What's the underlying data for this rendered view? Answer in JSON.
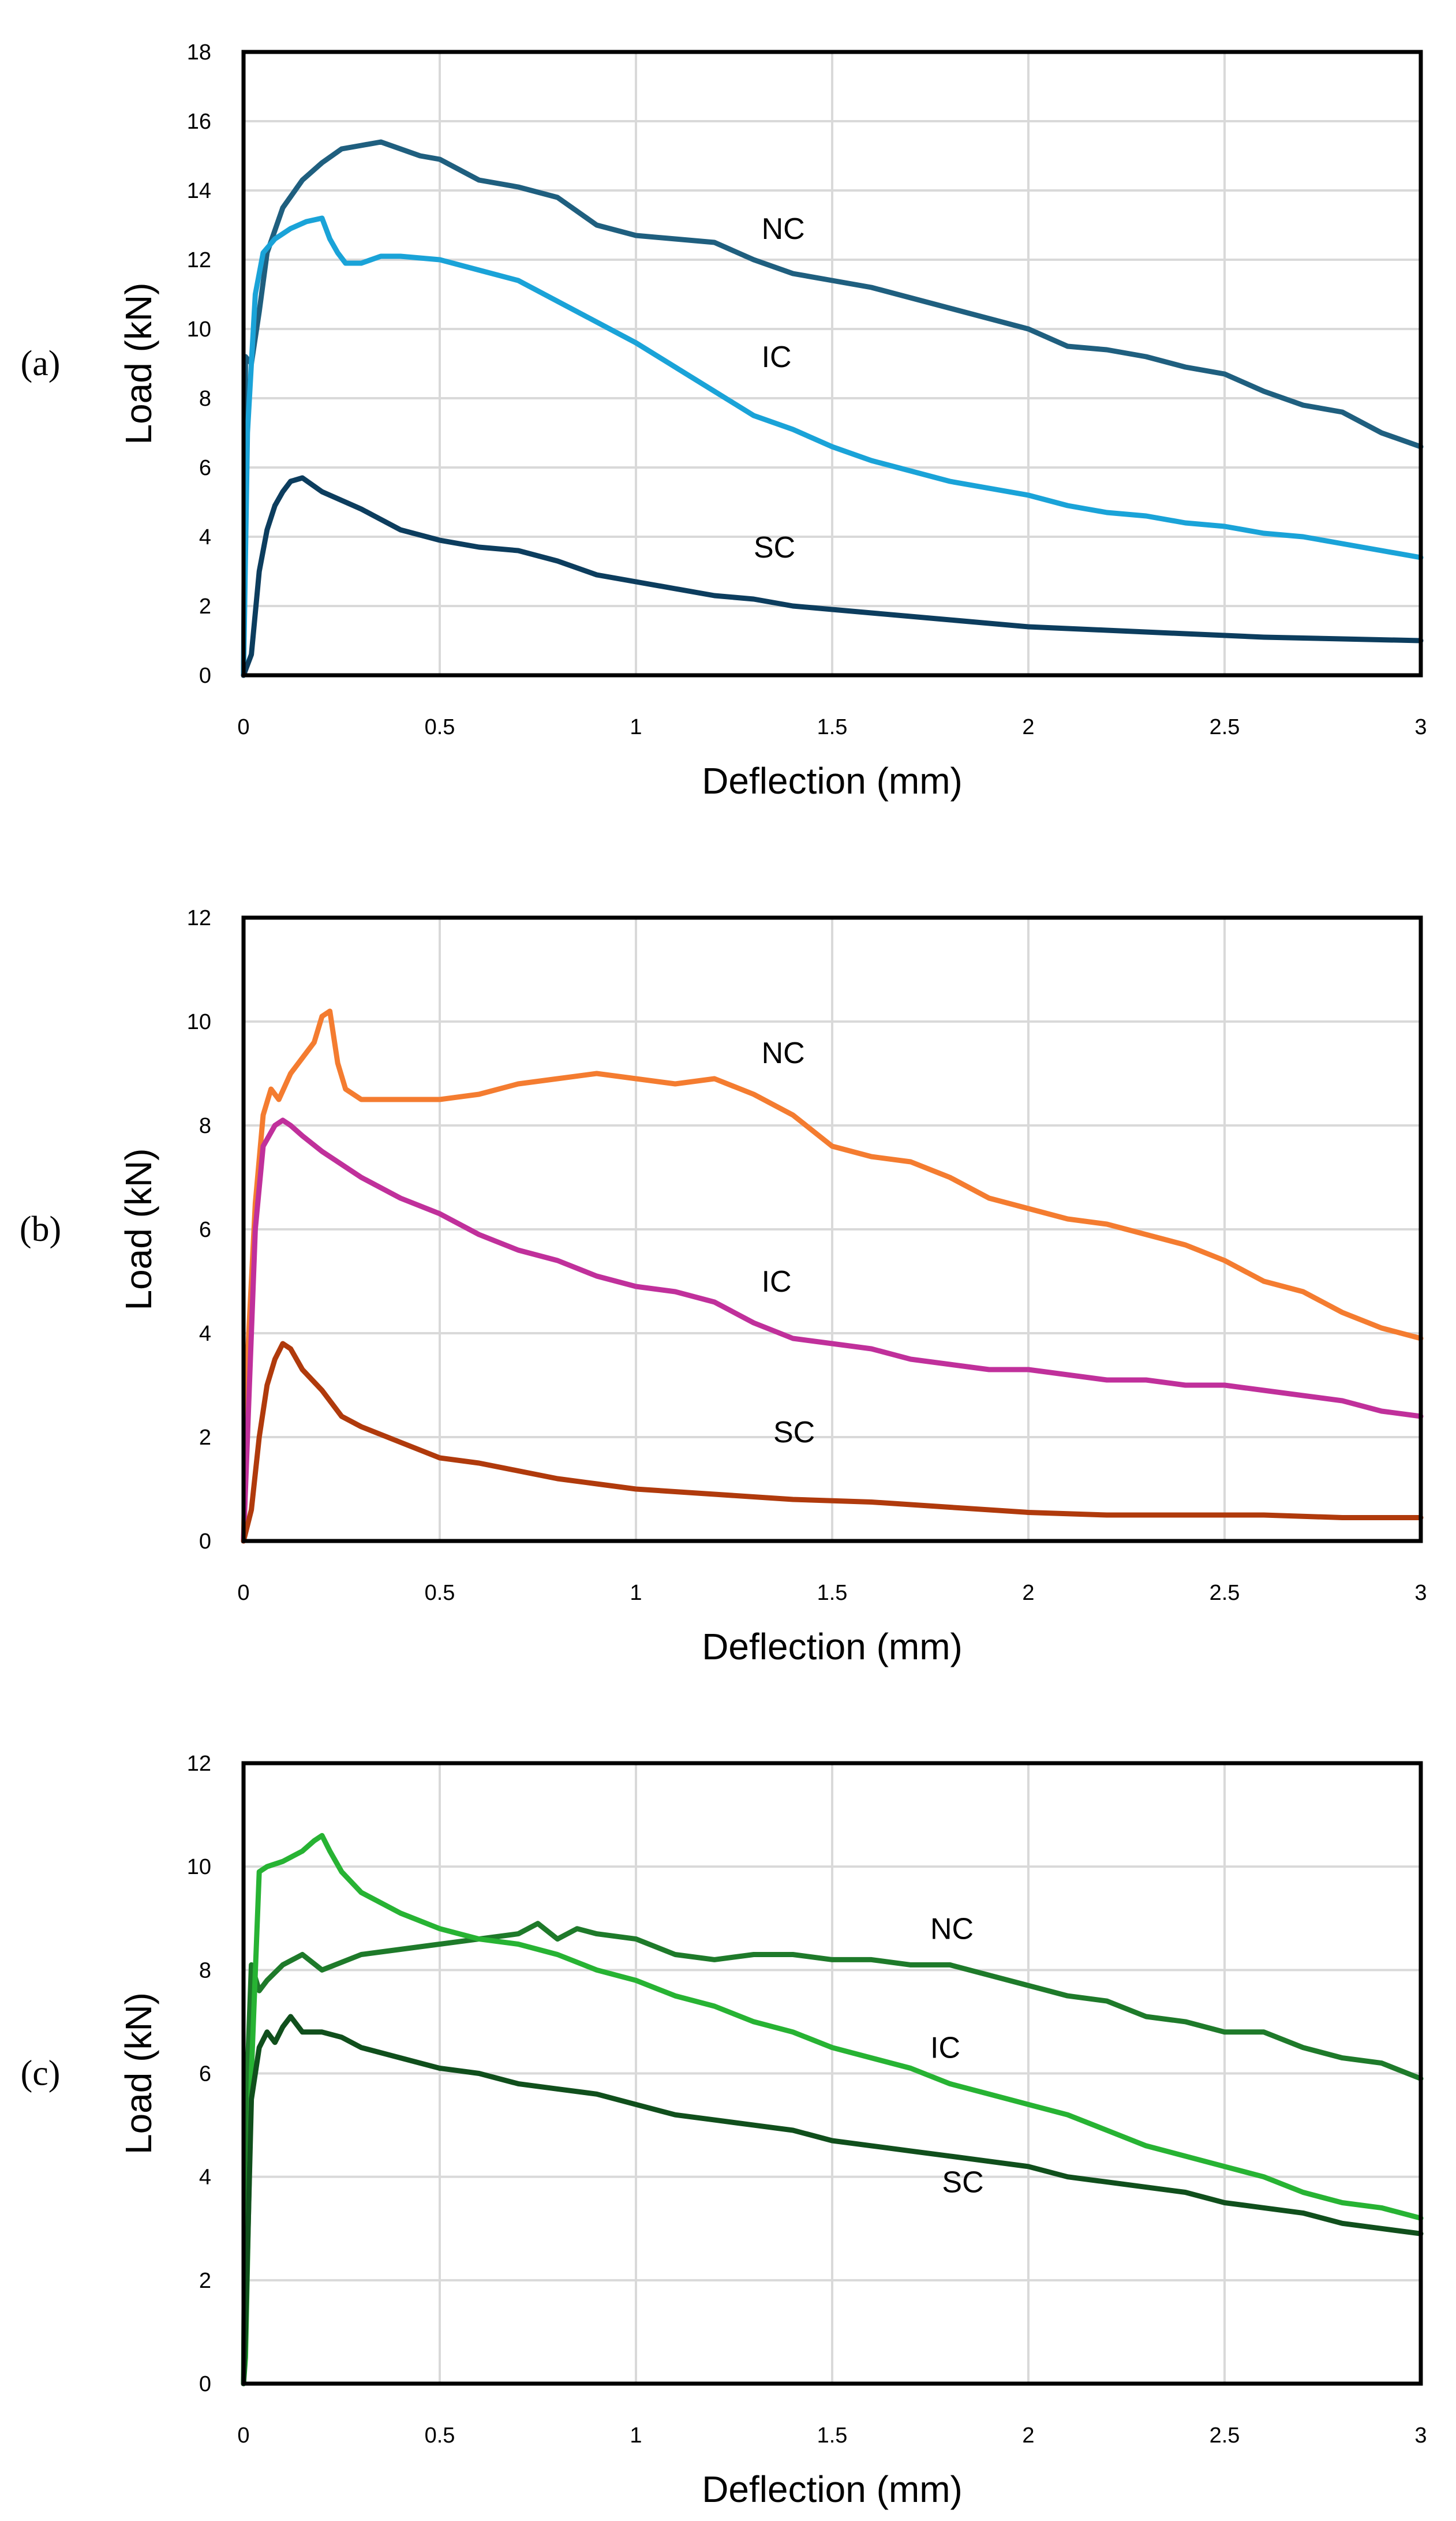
{
  "chart_data": [
    {
      "type": "line",
      "panel_label": "(a)",
      "xlabel": "Deflection (mm)",
      "ylabel": "Load (kN)",
      "xlim": [
        0,
        3
      ],
      "ylim": [
        0,
        18
      ],
      "xticks": [
        "0",
        "0.5",
        "1",
        "1.5",
        "2",
        "2.5",
        "3"
      ],
      "yticks": [
        "0",
        "2",
        "4",
        "6",
        "8",
        "10",
        "12",
        "14",
        "16",
        "18"
      ],
      "grid": true,
      "legend": "none",
      "series": [
        {
          "name": "NC",
          "color": "#1f5f7f",
          "label_at": [
            1.32,
            12.6
          ],
          "x": [
            0,
            0.005,
            0.02,
            0.04,
            0.06,
            0.1,
            0.15,
            0.2,
            0.25,
            0.3,
            0.35,
            0.4,
            0.45,
            0.5,
            0.6,
            0.7,
            0.8,
            0.9,
            1.0,
            1.1,
            1.2,
            1.3,
            1.4,
            1.5,
            1.6,
            1.7,
            1.8,
            1.9,
            2.0,
            2.1,
            2.2,
            2.3,
            2.4,
            2.5,
            2.6,
            2.7,
            2.8,
            2.9,
            3.0
          ],
          "y": [
            0,
            9.2,
            9.0,
            10.5,
            12.2,
            13.5,
            14.3,
            14.8,
            15.2,
            15.3,
            15.4,
            15.2,
            15.0,
            14.9,
            14.3,
            14.1,
            13.8,
            13.0,
            12.7,
            12.6,
            12.5,
            12.0,
            11.6,
            11.4,
            11.2,
            10.9,
            10.6,
            10.3,
            10.0,
            9.5,
            9.4,
            9.2,
            8.9,
            8.7,
            8.2,
            7.8,
            7.6,
            7.0,
            6.6
          ]
        },
        {
          "name": "IC",
          "color": "#1aa3d8",
          "label_at": [
            1.32,
            8.9
          ],
          "x": [
            0,
            0.01,
            0.03,
            0.05,
            0.08,
            0.12,
            0.16,
            0.2,
            0.22,
            0.24,
            0.26,
            0.3,
            0.35,
            0.4,
            0.5,
            0.6,
            0.7,
            0.8,
            0.9,
            1.0,
            1.1,
            1.2,
            1.3,
            1.4,
            1.5,
            1.6,
            1.7,
            1.8,
            1.9,
            2.0,
            2.1,
            2.2,
            2.3,
            2.4,
            2.5,
            2.6,
            2.7,
            2.8,
            2.9,
            3.0
          ],
          "y": [
            0,
            7.0,
            11.0,
            12.2,
            12.6,
            12.9,
            13.1,
            13.2,
            12.6,
            12.2,
            11.9,
            11.9,
            12.1,
            12.1,
            12.0,
            11.7,
            11.4,
            10.8,
            10.2,
            9.6,
            8.9,
            8.2,
            7.5,
            7.1,
            6.6,
            6.2,
            5.9,
            5.6,
            5.4,
            5.2,
            4.9,
            4.7,
            4.6,
            4.4,
            4.3,
            4.1,
            4.0,
            3.8,
            3.6,
            3.4
          ]
        },
        {
          "name": "SC",
          "color": "#0c3d5e",
          "label_at": [
            1.3,
            3.4
          ],
          "x": [
            0,
            0.02,
            0.04,
            0.06,
            0.08,
            0.1,
            0.12,
            0.15,
            0.2,
            0.3,
            0.4,
            0.5,
            0.6,
            0.7,
            0.8,
            0.9,
            1.0,
            1.1,
            1.2,
            1.3,
            1.4,
            1.5,
            1.6,
            1.7,
            1.8,
            1.9,
            2.0,
            2.2,
            2.4,
            2.6,
            2.8,
            3.0
          ],
          "y": [
            0,
            0.6,
            3.0,
            4.2,
            4.9,
            5.3,
            5.6,
            5.7,
            5.3,
            4.8,
            4.2,
            3.9,
            3.7,
            3.6,
            3.3,
            2.9,
            2.7,
            2.5,
            2.3,
            2.2,
            2.0,
            1.9,
            1.8,
            1.7,
            1.6,
            1.5,
            1.4,
            1.3,
            1.2,
            1.1,
            1.05,
            1.0
          ]
        }
      ]
    },
    {
      "type": "line",
      "panel_label": "(b)",
      "xlabel": "Deflection (mm)",
      "ylabel": "Load (kN)",
      "xlim": [
        0,
        3
      ],
      "ylim": [
        0,
        12
      ],
      "xticks": [
        "0",
        "0.5",
        "1",
        "1.5",
        "2",
        "2.5",
        "3"
      ],
      "yticks": [
        "0",
        "2",
        "4",
        "6",
        "8",
        "10",
        "12"
      ],
      "grid": true,
      "legend": "none",
      "series": [
        {
          "name": "NC",
          "color": "#f47c30",
          "label_at": [
            1.32,
            9.2
          ],
          "x": [
            0,
            0.01,
            0.03,
            0.05,
            0.07,
            0.09,
            0.12,
            0.15,
            0.18,
            0.2,
            0.22,
            0.24,
            0.26,
            0.3,
            0.4,
            0.5,
            0.6,
            0.7,
            0.8,
            0.9,
            1.0,
            1.1,
            1.2,
            1.3,
            1.4,
            1.5,
            1.6,
            1.7,
            1.8,
            1.9,
            2.0,
            2.1,
            2.2,
            2.3,
            2.4,
            2.5,
            2.6,
            2.7,
            2.8,
            2.9,
            3.0
          ],
          "y": [
            0,
            3.5,
            6.5,
            8.2,
            8.7,
            8.5,
            9.0,
            9.3,
            9.6,
            10.1,
            10.2,
            9.2,
            8.7,
            8.5,
            8.5,
            8.5,
            8.6,
            8.8,
            8.9,
            9.0,
            8.9,
            8.8,
            8.9,
            8.6,
            8.2,
            7.6,
            7.4,
            7.3,
            7.0,
            6.6,
            6.4,
            6.2,
            6.1,
            5.9,
            5.7,
            5.4,
            5.0,
            4.8,
            4.4,
            4.1,
            3.9
          ]
        },
        {
          "name": "IC",
          "color": "#c0309b",
          "label_at": [
            1.32,
            4.8
          ],
          "x": [
            0,
            0.01,
            0.03,
            0.05,
            0.08,
            0.1,
            0.12,
            0.15,
            0.2,
            0.3,
            0.4,
            0.5,
            0.6,
            0.7,
            0.8,
            0.9,
            1.0,
            1.1,
            1.2,
            1.3,
            1.4,
            1.5,
            1.6,
            1.7,
            1.8,
            1.9,
            2.0,
            2.1,
            2.2,
            2.3,
            2.4,
            2.5,
            2.6,
            2.7,
            2.8,
            2.9,
            3.0
          ],
          "y": [
            0,
            2.0,
            6.0,
            7.6,
            8.0,
            8.1,
            8.0,
            7.8,
            7.5,
            7.0,
            6.6,
            6.3,
            5.9,
            5.6,
            5.4,
            5.1,
            4.9,
            4.8,
            4.6,
            4.2,
            3.9,
            3.8,
            3.7,
            3.5,
            3.4,
            3.3,
            3.3,
            3.2,
            3.1,
            3.1,
            3.0,
            3.0,
            2.9,
            2.8,
            2.7,
            2.5,
            2.4
          ]
        },
        {
          "name": "SC",
          "color": "#b03a0c",
          "label_at": [
            1.35,
            1.9
          ],
          "x": [
            0,
            0.02,
            0.04,
            0.06,
            0.08,
            0.1,
            0.12,
            0.15,
            0.2,
            0.25,
            0.3,
            0.4,
            0.5,
            0.6,
            0.7,
            0.8,
            0.9,
            1.0,
            1.2,
            1.4,
            1.6,
            1.8,
            2.0,
            2.2,
            2.4,
            2.6,
            2.8,
            3.0
          ],
          "y": [
            0,
            0.6,
            2.0,
            3.0,
            3.5,
            3.8,
            3.7,
            3.3,
            2.9,
            2.4,
            2.2,
            1.9,
            1.6,
            1.5,
            1.35,
            1.2,
            1.1,
            1.0,
            0.9,
            0.8,
            0.75,
            0.65,
            0.55,
            0.5,
            0.5,
            0.5,
            0.45,
            0.45
          ]
        }
      ]
    },
    {
      "type": "line",
      "panel_label": "(c)",
      "xlabel": "Deflection (mm)",
      "ylabel": "Load (kN)",
      "xlim": [
        0,
        3
      ],
      "ylim": [
        0,
        12
      ],
      "xticks": [
        "0",
        "0.5",
        "1",
        "1.5",
        "2",
        "2.5",
        "3"
      ],
      "yticks": [
        "0",
        "2",
        "4",
        "6",
        "8",
        "10",
        "12"
      ],
      "grid": true,
      "legend": "none",
      "series": [
        {
          "name": "NC",
          "color": "#1e7a2a",
          "label_at": [
            1.75,
            8.6
          ],
          "x": [
            0,
            0.005,
            0.02,
            0.04,
            0.06,
            0.1,
            0.15,
            0.2,
            0.3,
            0.4,
            0.5,
            0.6,
            0.7,
            0.75,
            0.8,
            0.85,
            0.9,
            1.0,
            1.1,
            1.2,
            1.3,
            1.4,
            1.5,
            1.6,
            1.7,
            1.8,
            1.9,
            2.0,
            2.1,
            2.2,
            2.3,
            2.4,
            2.5,
            2.6,
            2.7,
            2.8,
            2.9,
            3.0
          ],
          "y": [
            0,
            5.0,
            8.1,
            7.6,
            7.8,
            8.1,
            8.3,
            8.0,
            8.3,
            8.4,
            8.5,
            8.6,
            8.7,
            8.9,
            8.6,
            8.8,
            8.7,
            8.6,
            8.3,
            8.2,
            8.3,
            8.3,
            8.2,
            8.2,
            8.1,
            8.1,
            7.9,
            7.7,
            7.5,
            7.4,
            7.1,
            7.0,
            6.8,
            6.8,
            6.5,
            6.3,
            6.2,
            5.9
          ]
        },
        {
          "name": "IC",
          "color": "#27b333",
          "label_at": [
            1.75,
            6.3
          ],
          "x": [
            0,
            0.005,
            0.02,
            0.04,
            0.06,
            0.1,
            0.15,
            0.18,
            0.2,
            0.22,
            0.25,
            0.3,
            0.4,
            0.5,
            0.6,
            0.7,
            0.8,
            0.9,
            1.0,
            1.1,
            1.2,
            1.3,
            1.4,
            1.5,
            1.6,
            1.7,
            1.8,
            1.9,
            2.0,
            2.1,
            2.2,
            2.3,
            2.4,
            2.5,
            2.6,
            2.7,
            2.8,
            2.9,
            3.0
          ],
          "y": [
            0,
            0.5,
            6.0,
            9.9,
            10.0,
            10.1,
            10.3,
            10.5,
            10.6,
            10.3,
            9.9,
            9.5,
            9.1,
            8.8,
            8.6,
            8.5,
            8.3,
            8.0,
            7.8,
            7.5,
            7.3,
            7.0,
            6.8,
            6.5,
            6.3,
            6.1,
            5.8,
            5.6,
            5.4,
            5.2,
            4.9,
            4.6,
            4.4,
            4.2,
            4.0,
            3.7,
            3.5,
            3.4,
            3.2
          ]
        },
        {
          "name": "SC",
          "color": "#104f1c",
          "label_at": [
            1.78,
            3.7
          ],
          "x": [
            0,
            0.005,
            0.02,
            0.04,
            0.06,
            0.08,
            0.1,
            0.12,
            0.15,
            0.2,
            0.25,
            0.3,
            0.4,
            0.5,
            0.6,
            0.7,
            0.8,
            0.9,
            1.0,
            1.1,
            1.2,
            1.3,
            1.4,
            1.5,
            1.6,
            1.7,
            1.8,
            1.9,
            2.0,
            2.1,
            2.2,
            2.3,
            2.4,
            2.5,
            2.6,
            2.7,
            2.8,
            2.9,
            3.0
          ],
          "y": [
            0,
            1.0,
            5.5,
            6.5,
            6.8,
            6.6,
            6.9,
            7.1,
            6.8,
            6.8,
            6.7,
            6.5,
            6.3,
            6.1,
            6.0,
            5.8,
            5.7,
            5.6,
            5.4,
            5.2,
            5.1,
            5.0,
            4.9,
            4.7,
            4.6,
            4.5,
            4.4,
            4.3,
            4.2,
            4.0,
            3.9,
            3.8,
            3.7,
            3.5,
            3.4,
            3.3,
            3.1,
            3.0,
            2.9
          ]
        }
      ]
    }
  ]
}
